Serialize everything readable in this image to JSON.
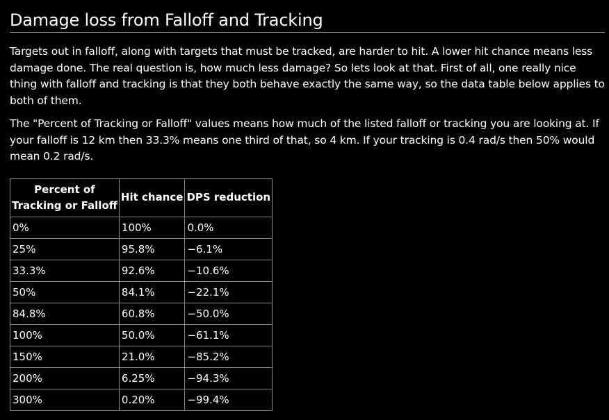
{
  "page": {
    "title": "Damage loss from Falloff and Tracking",
    "paragraphs": [
      "Targets out in falloff, along with targets that must be tracked, are harder to hit. A lower hit chance means less damage done. The real question is, how much less damage? So lets look at that. First of all, one really nice thing with falloff and tracking is that they both behave exactly the same way, so the data table below applies to both of them.",
      "The \"Percent of Tracking or Falloff\" values means how much of the listed falloff or tracking you are looking at. If your falloff is 12 km then 33.3% means one third of that, so 4 km. If your tracking is 0.4 rad/s then 50% would mean 0.2 rad/s."
    ]
  },
  "table": {
    "headers": {
      "percent_line1": "Percent of",
      "percent_line2": "Tracking or Falloff",
      "hit_chance": "Hit chance",
      "dps_reduction": "DPS reduction"
    },
    "rows": [
      {
        "percent": "0%",
        "hit": "100%",
        "dps": "0.0%"
      },
      {
        "percent": "25%",
        "hit": "95.8%",
        "dps": "−6.1%"
      },
      {
        "percent": "33.3%",
        "hit": "92.6%",
        "dps": "−10.6%"
      },
      {
        "percent": "50%",
        "hit": "84.1%",
        "dps": "−22.1%"
      },
      {
        "percent": "84.8%",
        "hit": "60.8%",
        "dps": "−50.0%"
      },
      {
        "percent": "100%",
        "hit": "50.0%",
        "dps": "−61.1%"
      },
      {
        "percent": "150%",
        "hit": "21.0%",
        "dps": "−85.2%"
      },
      {
        "percent": "200%",
        "hit": "6.25%",
        "dps": "−94.3%"
      },
      {
        "percent": "300%",
        "hit": "0.20%",
        "dps": "−99.4%"
      }
    ]
  }
}
